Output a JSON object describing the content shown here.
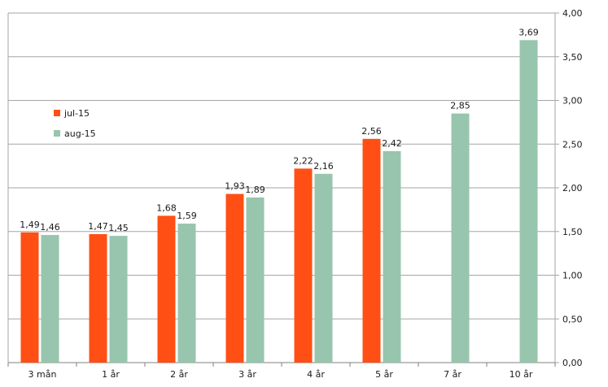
{
  "chart_data": {
    "type": "bar",
    "categories": [
      "3 mån",
      "1 år",
      "2 år",
      "3 år",
      "4 år",
      "5 år",
      "7 år",
      "10 år"
    ],
    "series": [
      {
        "name": "jul-15",
        "color": "#ff4f14",
        "values": [
          1.49,
          1.47,
          1.68,
          1.93,
          2.22,
          2.56,
          null,
          null
        ]
      },
      {
        "name": "aug-15",
        "color": "#98c5ad",
        "values": [
          1.46,
          1.45,
          1.59,
          1.89,
          2.16,
          2.42,
          2.85,
          3.69
        ]
      }
    ],
    "ylim": [
      0,
      4
    ],
    "yticks": [
      0,
      0.5,
      1,
      1.5,
      2,
      2.5,
      3,
      3.5,
      4
    ],
    "y_axis_side": "right",
    "decimal_separator": ",",
    "grid": true,
    "legend_position": "left",
    "title": "",
    "xlabel": "",
    "ylabel": ""
  }
}
